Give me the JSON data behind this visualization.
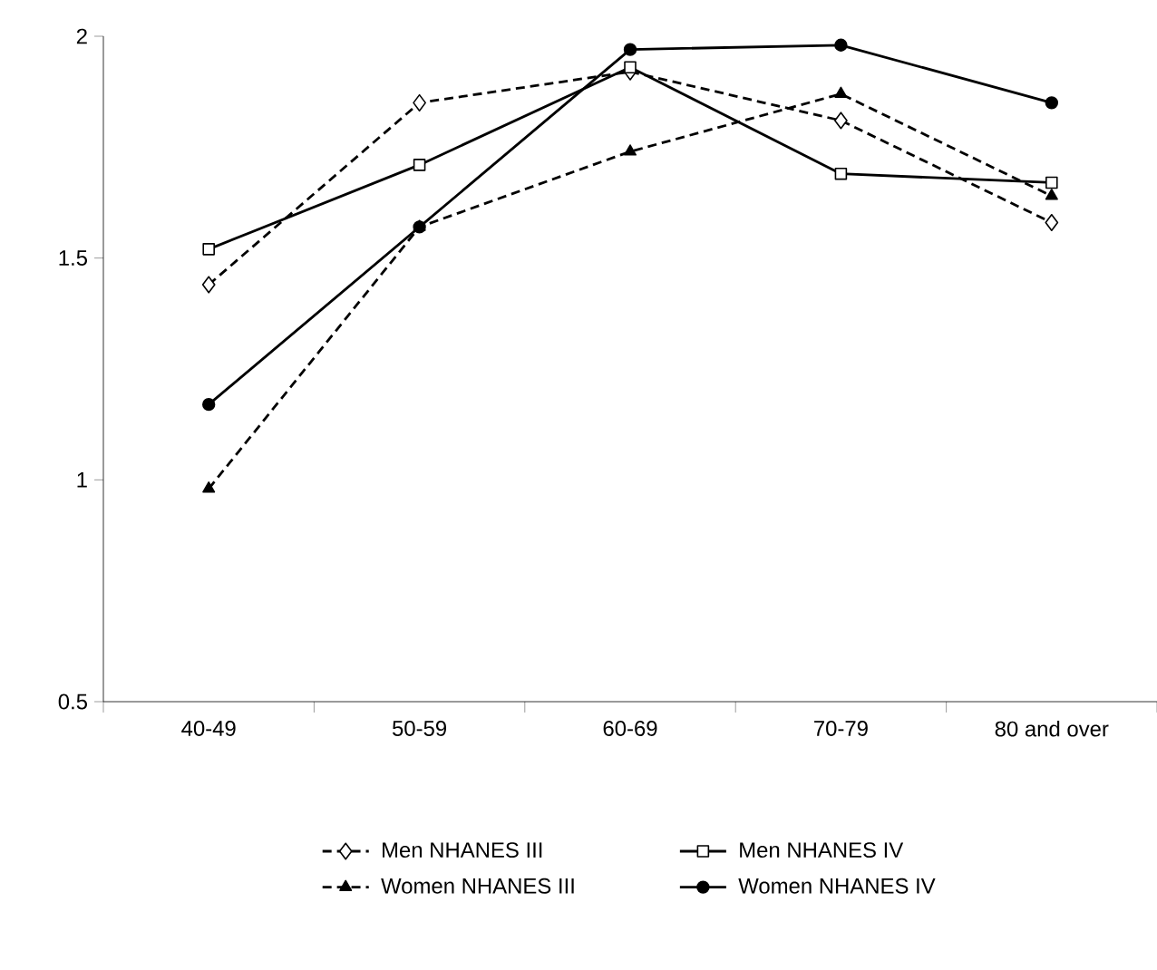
{
  "chart_data": {
    "type": "line",
    "categories": [
      "40-49",
      "50-59",
      "60-69",
      "70-79",
      "80 and over"
    ],
    "ylim": [
      0.5,
      2
    ],
    "yticks": [
      0.5,
      1,
      1.5,
      2
    ],
    "grid": false,
    "legend": "bottom",
    "series": [
      {
        "name": "Men NHANES III",
        "color": "#000000",
        "marker": "diamond",
        "line_style": "dashed",
        "values": [
          1.44,
          1.85,
          1.92,
          1.81,
          1.58
        ]
      },
      {
        "name": "Men NHANES IV",
        "color": "#000000",
        "marker": "square",
        "line_style": "solid",
        "values": [
          1.52,
          1.71,
          1.93,
          1.69,
          1.67
        ]
      },
      {
        "name": "Women NHANES III",
        "color": "#000000",
        "marker": "triangle",
        "line_style": "dashed",
        "values": [
          0.98,
          1.57,
          1.74,
          1.87,
          1.64
        ]
      },
      {
        "name": "Women NHANES IV",
        "color": "#000000",
        "marker": "circle",
        "line_style": "solid",
        "values": [
          1.17,
          1.57,
          1.97,
          1.98,
          1.85
        ]
      }
    ]
  }
}
